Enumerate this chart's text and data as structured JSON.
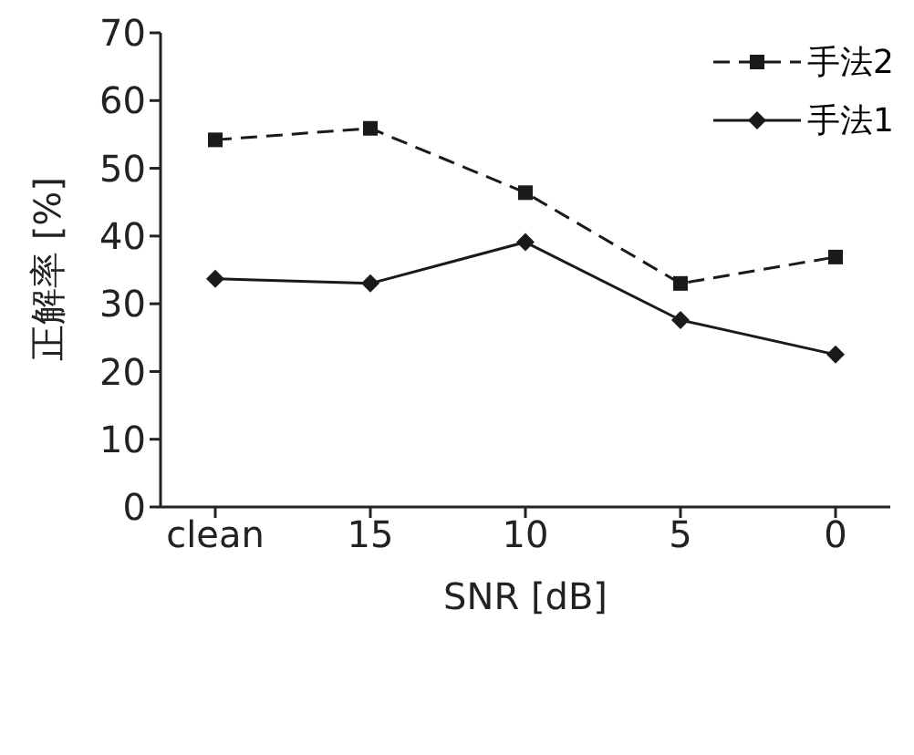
{
  "chart_data": {
    "type": "line",
    "xlabel": "SNR [dB]",
    "ylabel": "正解率 [%]",
    "categories": [
      "clean",
      "15",
      "10",
      "5",
      "0"
    ],
    "series": [
      {
        "name": "手法2",
        "color": "#1a1a1a",
        "marker": "square",
        "line_style": "dashed",
        "values": [
          54.2,
          55.9,
          46.4,
          33,
          36.9
        ]
      },
      {
        "name": "手法1",
        "color": "#1a1a1a",
        "marker": "diamond",
        "line_style": "solid",
        "values": [
          33.7,
          33,
          39.1,
          27.6,
          22.5
        ]
      }
    ],
    "ylim": [
      0,
      70
    ],
    "yticks": [
      0,
      10,
      20,
      30,
      40,
      50,
      60,
      70
    ],
    "grid": false,
    "legend": "top right"
  }
}
